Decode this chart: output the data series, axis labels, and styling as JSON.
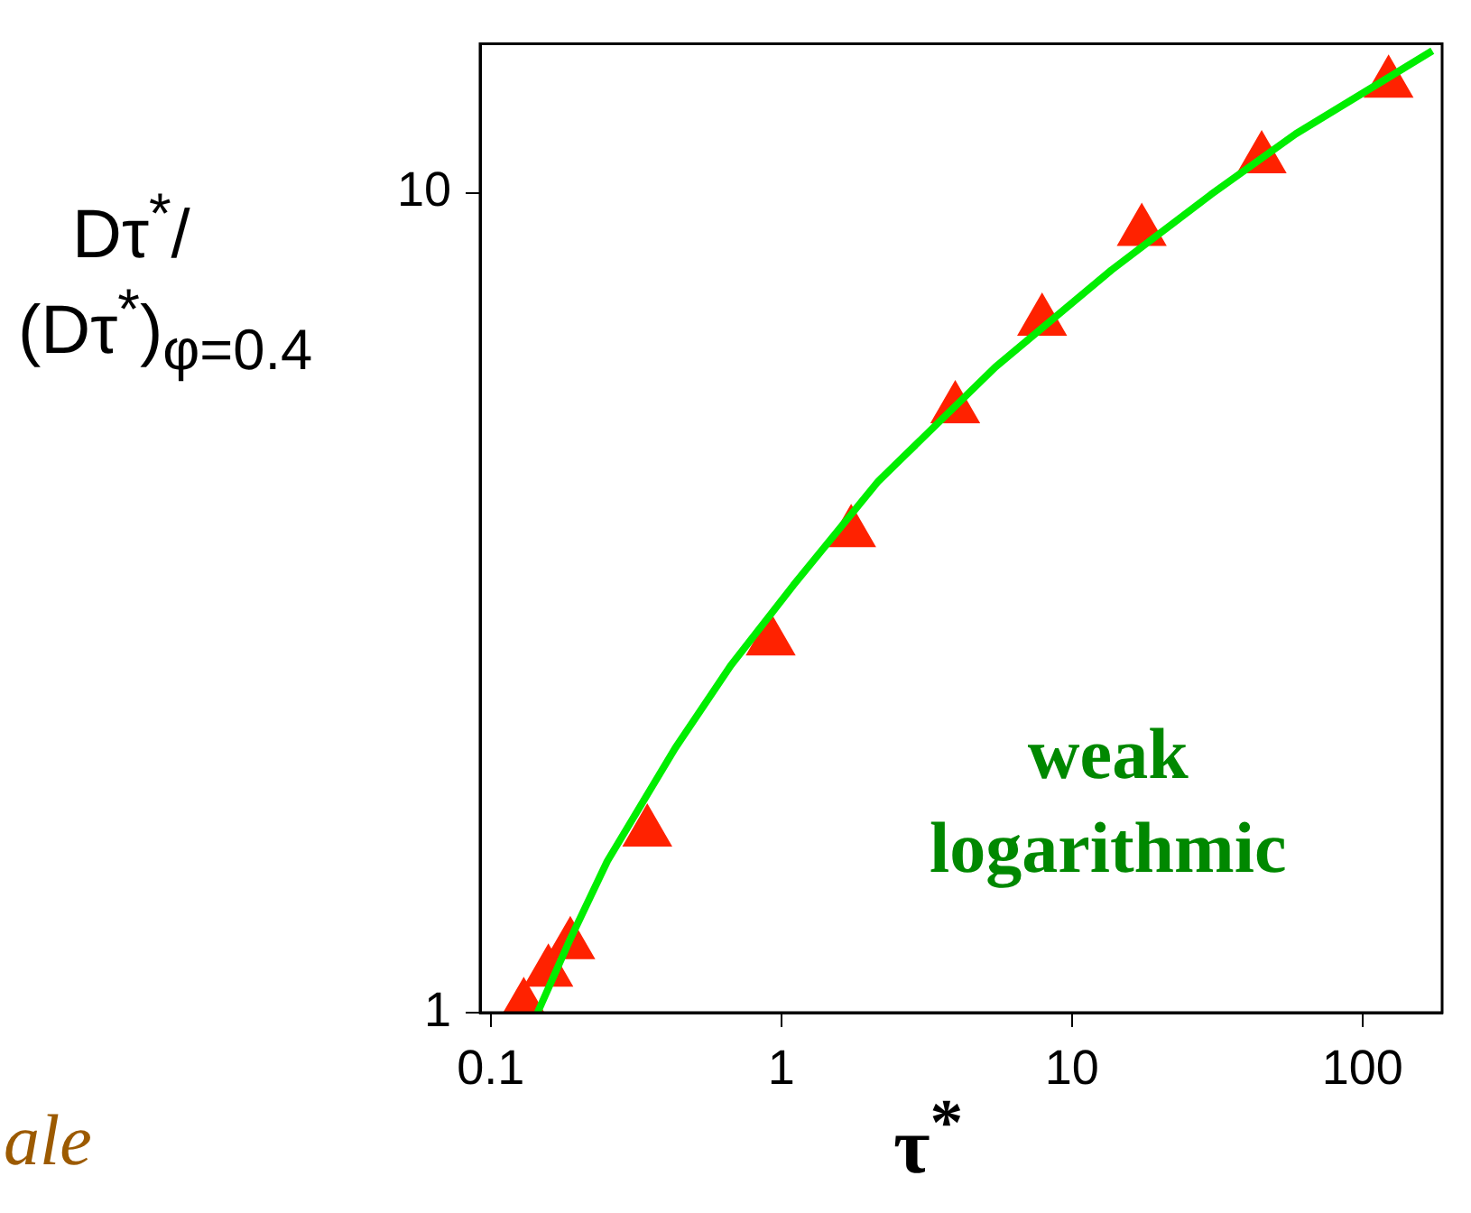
{
  "chart_data": {
    "type": "scatter",
    "xlabel": "τ$^{*}$",
    "ylabel": "Dτ$^{*}$/(Dτ$^{*}$)$_{φ=0.4}$",
    "log": "xy",
    "xlim": [
      0.092,
      188
    ],
    "ylim": [
      1,
      15.2
    ],
    "xticks": [
      0.1,
      1,
      10,
      100
    ],
    "yticks": [
      1,
      10
    ],
    "grid": false,
    "legend": false,
    "annotations": [
      "weak\nlogarithmic",
      "ale"
    ],
    "series": [
      {
        "type": "line",
        "color": "#00ee00",
        "marker": "none",
        "x": [
          0.145,
          0.186,
          0.252,
          0.431,
          0.67,
          1.1,
          2.16,
          5.46,
          13.7,
          30.1,
          59,
          174
        ],
        "values": [
          1.0,
          1.22,
          1.53,
          2.1,
          2.65,
          3.32,
          4.45,
          6.13,
          8.05,
          9.95,
          11.8,
          14.9
        ]
      },
      {
        "type": "scatter",
        "color": "#ff2200",
        "marker": "triangle",
        "x": [
          0.13,
          0.158,
          0.188,
          0.346,
          0.92,
          1.74,
          3.97,
          7.9,
          17.4,
          45,
          123
        ],
        "values": [
          1.02,
          1.12,
          1.21,
          1.66,
          2.84,
          3.85,
          5.45,
          6.97,
          8.97,
          11.0,
          13.6
        ]
      }
    ]
  }
}
